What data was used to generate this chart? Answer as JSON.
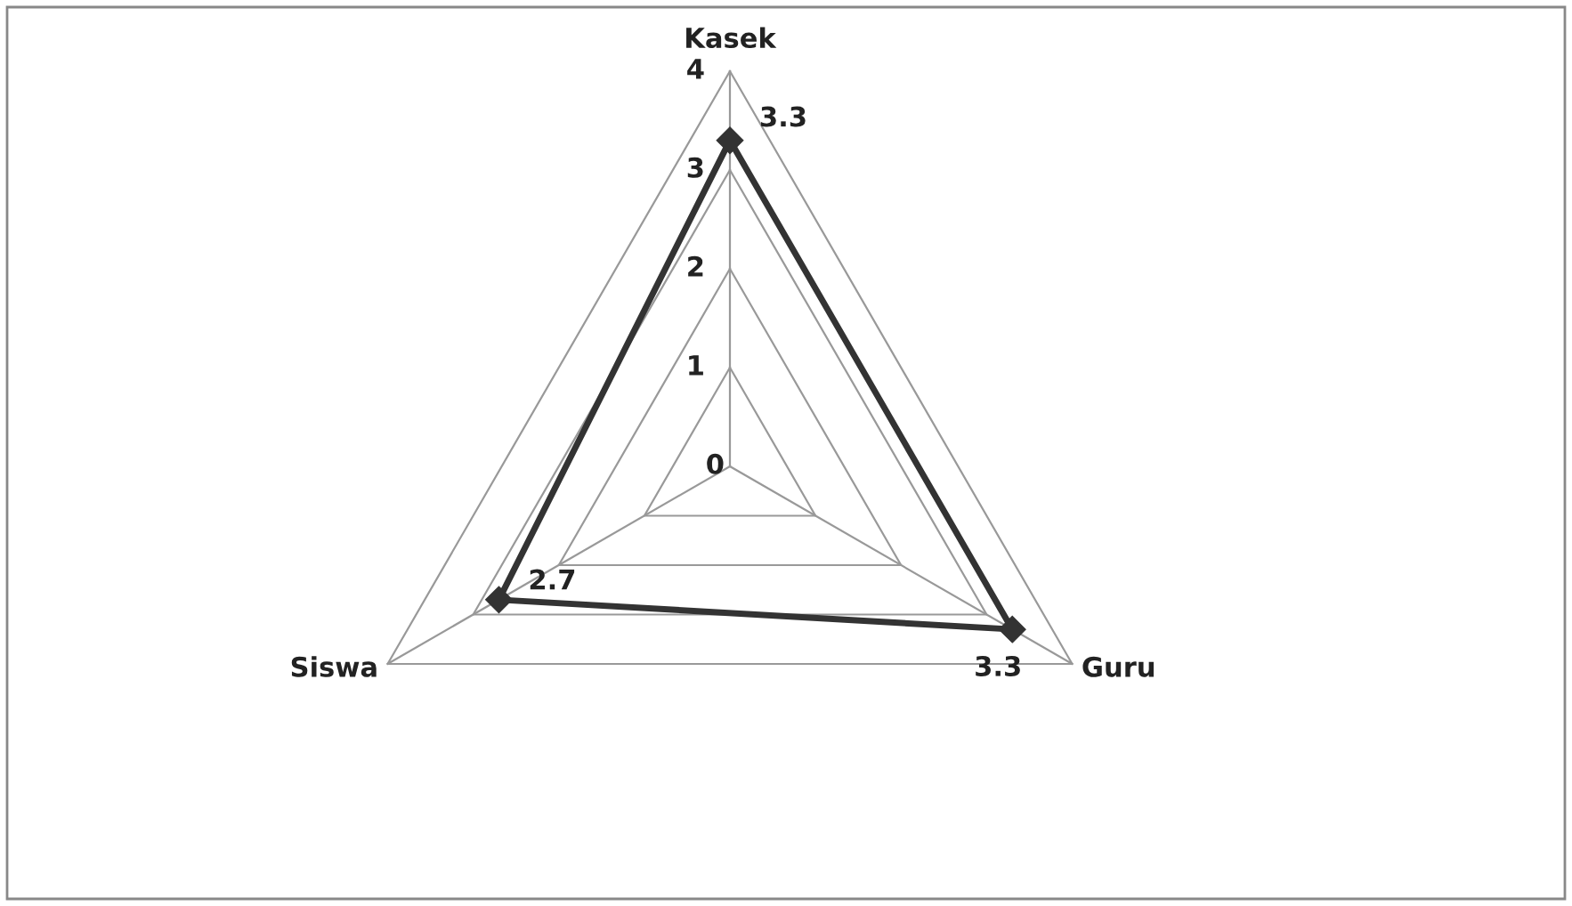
{
  "chart_data": {
    "type": "radar",
    "categories": [
      "Kasek",
      "Guru",
      "Siswa"
    ],
    "series": [
      {
        "color": "#333333",
        "values": [
          3.3,
          3.3,
          2.7
        ]
      }
    ],
    "ylim": [
      0,
      4
    ],
    "yticks": [
      0,
      1,
      2,
      3,
      4
    ],
    "grid": true,
    "marker": "diamond",
    "line_style": "solid",
    "data_labels": true
  }
}
